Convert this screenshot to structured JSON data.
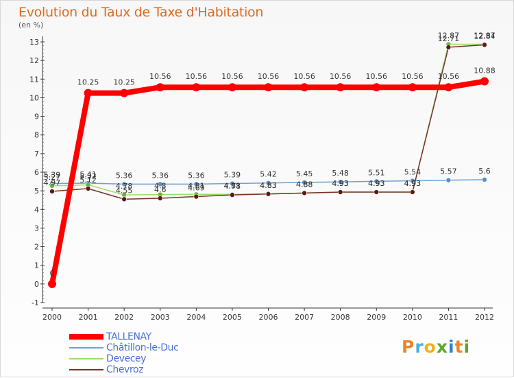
{
  "title": "Evolution du Taux de Taxe d'Habitation",
  "unit": "(en %)",
  "logo": {
    "letters": [
      "P",
      "r",
      "o",
      "x",
      "i",
      "t",
      "i"
    ],
    "colors": [
      "#e8862a",
      "#4bb0d8",
      "#f2b01e",
      "#5ca82a",
      "#2d7fd4",
      "#e8862a",
      "#5ca82a"
    ]
  },
  "chart_data": {
    "type": "line",
    "title": "Evolution du Taux de Taxe d'Habitation",
    "ylabel": "(en %)",
    "xlabel": "",
    "x": [
      "2000",
      "2001",
      "2002",
      "2003",
      "2004",
      "2005",
      "2006",
      "2007",
      "2008",
      "2009",
      "2010",
      "2011",
      "2012"
    ],
    "yticks": [
      "-1",
      "0",
      "1",
      "2",
      "3",
      "4",
      "5",
      "6",
      "7",
      "8",
      "9",
      "10",
      "11",
      "12",
      "13"
    ],
    "ylim": [
      -1,
      13
    ],
    "grid": false,
    "legend_position": "bottom-left",
    "series": [
      {
        "name": "TALLENAY",
        "color": "#ff0000",
        "width": 8,
        "values": [
          0,
          10.25,
          10.25,
          10.56,
          10.56,
          10.56,
          10.56,
          10.56,
          10.56,
          10.56,
          10.56,
          10.56,
          10.88
        ],
        "labels": [
          "0",
          "10.25",
          "10.25",
          "10.56",
          "10.56",
          "10.56",
          "10.56",
          "10.56",
          "10.56",
          "10.56",
          "10.56",
          "10.56",
          "10.88"
        ]
      },
      {
        "name": "Châtillon-le-Duc",
        "color": "#6fa0cc",
        "width": 1.5,
        "values": [
          5.39,
          5.41,
          5.36,
          5.36,
          5.36,
          5.39,
          5.42,
          5.45,
          5.48,
          5.51,
          5.54,
          5.57,
          5.6
        ],
        "labels": [
          "5.39",
          "5.41",
          "5.36",
          "5.36",
          "5.36",
          "5.39",
          "5.42",
          "5.45",
          "5.48",
          "5.51",
          "5.54",
          "5.57",
          "5.6"
        ]
      },
      {
        "name": "Devecey",
        "color": "#99dd66",
        "width": 1.5,
        "values": [
          5.27,
          5.32,
          4.78,
          4.8,
          4.81,
          4.81,
          4.83,
          4.88,
          4.93,
          4.93,
          4.93,
          12.87,
          12.87
        ],
        "labels": [
          "5.27",
          "5.32",
          "4.78",
          "4.8",
          "4.81",
          "4.81",
          "4.83",
          "4.88",
          "4.93",
          "4.93",
          "4.93",
          "12.87",
          "12.87"
        ]
      },
      {
        "name": "Chevroz",
        "color": "#7a2f2a",
        "width": 1.5,
        "values": [
          4.97,
          5.12,
          4.55,
          4.6,
          4.69,
          4.78,
          4.83,
          4.88,
          4.93,
          4.93,
          4.93,
          12.71,
          12.84
        ],
        "labels": [
          "4.97",
          "5.12",
          "4.55",
          "4.6",
          "4.69",
          "4.78",
          "4.83",
          "4.88",
          "4.93",
          "4.93",
          "4.93",
          "12.71",
          "12.84"
        ]
      }
    ]
  }
}
